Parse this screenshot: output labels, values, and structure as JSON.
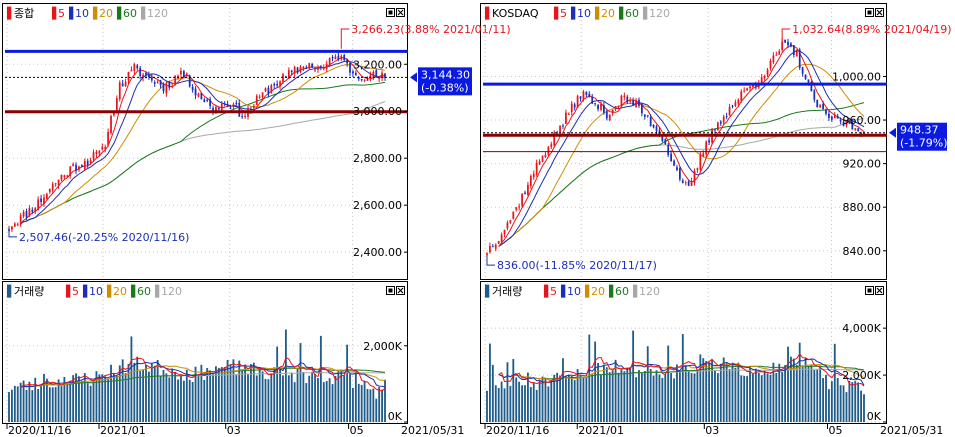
{
  "colors": {
    "up": "#e8141c",
    "down": "#1a2fb5",
    "ma5": "#e8141c",
    "ma10": "#1a2fb5",
    "ma20": "#d08c00",
    "ma60": "#1a7a1a",
    "ma120": "#a8a8a8",
    "volume": "#1f5c8a",
    "level_blue": "#0a1ae0",
    "level_red": "#8b0000",
    "current_tag": "#0a1ae0"
  },
  "x_axis": {
    "ticks": [
      "2020/11/16",
      "2021/01",
      "03",
      "05",
      "2021/05/31"
    ]
  },
  "left": {
    "price": {
      "legend": {
        "marker": "▌",
        "name": "종합",
        "periods": [
          "5",
          "10",
          "20",
          "60",
          "120"
        ]
      },
      "icons": [
        "window-restore-icon",
        "close-icon"
      ],
      "yticks": [
        "3,200.00",
        "3,000.00",
        "2,800.00",
        "2,600.00",
        "2,400.00"
      ],
      "ytick_values": [
        3200,
        3000,
        2800,
        2600,
        2400
      ],
      "ylim": [
        2290,
        3380
      ],
      "high_label": "3,266.23(3.88% 2021/01/11)",
      "high_value": 3266.23,
      "low_label": "2,507.46(-20.25% 2020/11/16)",
      "low_value": 2507.46,
      "current_value_label": "3,144.30",
      "current_change_label": "(-0.38%)",
      "current_value": 3144.3,
      "blue_level": 3255,
      "red_level": 2998
    },
    "volume": {
      "legend": {
        "marker": "▌",
        "name": "거래량",
        "periods": [
          "5",
          "10",
          "20",
          "60",
          "120"
        ]
      },
      "icons": [
        "window-restore-icon",
        "close-icon"
      ],
      "yticks": [
        "2,000K",
        "0K"
      ],
      "ytick_values": [
        2000,
        0
      ],
      "ylim": [
        0,
        3200
      ]
    }
  },
  "right": {
    "price": {
      "legend": {
        "marker": "▌",
        "name": "KOSDAQ",
        "periods": [
          "5",
          "10",
          "20",
          "60",
          "120"
        ]
      },
      "icons": [
        "window-restore-icon",
        "close-icon"
      ],
      "yticks": [
        "1,000.00",
        "960.00",
        "920.00",
        "880.00",
        "840.00"
      ],
      "ytick_values": [
        1000,
        960,
        920,
        880,
        840
      ],
      "ylim": [
        815,
        1050
      ],
      "high_label": "1,032.64(8.89% 2021/04/19)",
      "high_value": 1032.64,
      "low_label": "836.00(-11.85% 2020/11/17)",
      "low_value": 836.0,
      "current_value_label": "948.37",
      "current_change_label": "(-1.79%)",
      "current_value": 948.37,
      "blue_level": 993,
      "red_level": 946,
      "thin_red_level": 931
    },
    "volume": {
      "legend": {
        "marker": "▌",
        "name": "거래량",
        "periods": [
          "5",
          "10",
          "20",
          "60",
          "120"
        ]
      },
      "icons": [
        "window-restore-icon",
        "close-icon"
      ],
      "yticks": [
        "4,000K",
        "2,000K",
        "0K"
      ],
      "ytick_values": [
        4000,
        2000,
        0
      ],
      "ylim": [
        0,
        5200
      ]
    }
  },
  "chart_data": [
    {
      "type": "line",
      "name": "종합",
      "x": [
        "2020/11/16",
        "2020/11/30",
        "2020/12/14",
        "2020/12/28",
        "2021/01/11",
        "2021/01/25",
        "2021/02/08",
        "2021/02/22",
        "2021/03/08",
        "2021/03/22",
        "2021/04/05",
        "2021/04/19",
        "2021/05/03",
        "2021/05/17",
        "2021/05/28"
      ],
      "series": [
        {
          "name": "종합",
          "values": [
            2507,
            2590,
            2760,
            2810,
            3150,
            3080,
            3110,
            3040,
            2980,
            3030,
            3080,
            3160,
            3180,
            3130,
            3144
          ]
        }
      ],
      "high": {
        "value": 3266.23,
        "label": "3,266.23(3.88% 2021/01/11)"
      },
      "low": {
        "value": 2507.46,
        "label": "2,507.46(-20.25% 2020/11/16)"
      },
      "ylim": [
        2290,
        3380
      ]
    },
    {
      "type": "line",
      "name": "KOSDAQ",
      "x": [
        "2020/11/17",
        "2020/11/30",
        "2020/12/14",
        "2020/12/28",
        "2021/01/11",
        "2021/01/25",
        "2021/02/08",
        "2021/02/22",
        "2021/03/08",
        "2021/03/22",
        "2021/04/05",
        "2021/04/19",
        "2021/05/03",
        "2021/05/17",
        "2021/05/28"
      ],
      "series": [
        {
          "name": "KOSDAQ",
          "values": [
            836,
            870,
            920,
            960,
            985,
            975,
            965,
            940,
            905,
            955,
            990,
            1032,
            985,
            965,
            948
          ]
        }
      ],
      "high": {
        "value": 1032.64,
        "label": "1,032.64(8.89% 2021/04/19)"
      },
      "low": {
        "value": 836.0,
        "label": "836.00(-11.85% 2020/11/17)"
      },
      "ylim": [
        815,
        1050
      ]
    }
  ]
}
